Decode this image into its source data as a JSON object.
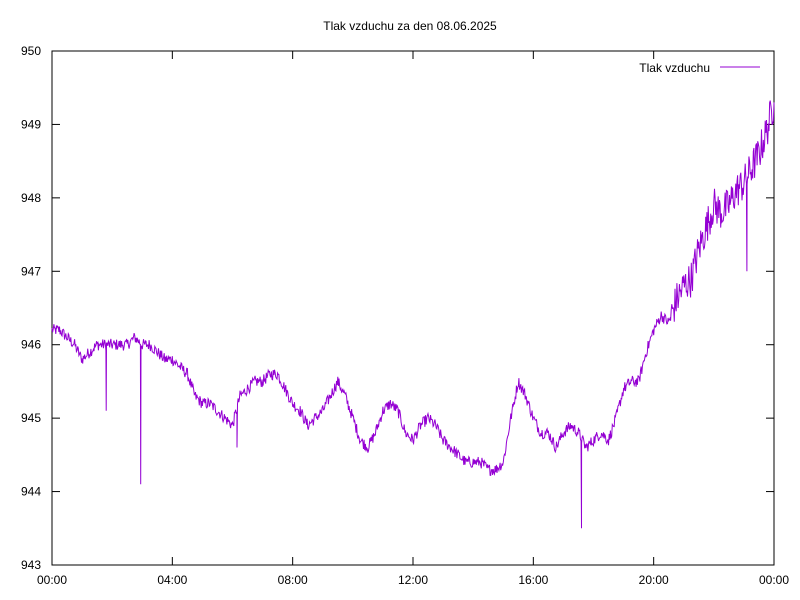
{
  "chart_data": {
    "type": "line",
    "title": "Tlak vzduchu za den 08.06.2025",
    "xlabel": "",
    "ylabel": "",
    "x_ticks": [
      "00:00",
      "04:00",
      "08:00",
      "12:00",
      "16:00",
      "20:00",
      "00:00"
    ],
    "y_ticks": [
      "943",
      "944",
      "945",
      "946",
      "947",
      "948",
      "949",
      "950"
    ],
    "xlim_hours": [
      0,
      24
    ],
    "ylim": [
      943,
      950
    ],
    "grid": false,
    "legend": {
      "placement": "top-right"
    },
    "series": [
      {
        "name": "Tlak vzduchu",
        "color": "#9400d3",
        "x_hours": [
          0.0,
          0.25,
          0.5,
          0.75,
          1.0,
          1.25,
          1.5,
          1.75,
          2.0,
          2.25,
          2.5,
          2.75,
          3.0,
          3.25,
          3.5,
          3.75,
          4.0,
          4.25,
          4.5,
          4.75,
          5.0,
          5.25,
          5.5,
          5.75,
          6.0,
          6.25,
          6.5,
          6.75,
          7.0,
          7.25,
          7.5,
          7.75,
          8.0,
          8.25,
          8.5,
          8.75,
          9.0,
          9.25,
          9.5,
          9.75,
          10.0,
          10.25,
          10.5,
          10.75,
          11.0,
          11.25,
          11.5,
          11.75,
          12.0,
          12.25,
          12.5,
          12.75,
          13.0,
          13.25,
          13.5,
          13.75,
          14.0,
          14.25,
          14.5,
          14.75,
          15.0,
          15.25,
          15.5,
          15.75,
          16.0,
          16.25,
          16.5,
          16.75,
          17.0,
          17.25,
          17.5,
          17.75,
          18.0,
          18.25,
          18.5,
          18.75,
          19.0,
          19.25,
          19.5,
          19.75,
          20.0,
          20.25,
          20.5,
          20.75,
          21.0,
          21.25,
          21.5,
          21.75,
          22.0,
          22.25,
          22.5,
          22.75,
          23.0,
          23.25,
          23.5,
          23.75,
          24.0
        ],
        "values": [
          946.2,
          946.2,
          946.1,
          946.0,
          945.8,
          945.9,
          946.0,
          946.0,
          946.0,
          946.0,
          946.0,
          946.1,
          946.0,
          946.0,
          945.9,
          945.8,
          945.8,
          945.7,
          945.6,
          945.3,
          945.2,
          945.2,
          945.1,
          945.0,
          944.9,
          945.3,
          945.4,
          945.5,
          945.5,
          945.6,
          945.6,
          945.4,
          945.2,
          945.1,
          944.9,
          945.0,
          945.1,
          945.3,
          945.5,
          945.3,
          945.0,
          944.7,
          944.6,
          944.8,
          945.1,
          945.2,
          945.1,
          944.8,
          944.7,
          944.9,
          945.0,
          944.9,
          944.7,
          944.6,
          944.5,
          944.4,
          944.4,
          944.4,
          944.3,
          944.3,
          944.4,
          945.0,
          945.5,
          945.3,
          945.0,
          944.8,
          944.8,
          944.6,
          944.8,
          944.9,
          944.8,
          944.6,
          944.7,
          944.8,
          944.7,
          945.0,
          945.4,
          945.5,
          945.5,
          945.9,
          946.2,
          946.4,
          946.3,
          946.6,
          946.8,
          946.9,
          947.3,
          947.6,
          947.9,
          947.8,
          947.9,
          948.1,
          948.2,
          948.4,
          948.6,
          948.9,
          949.3
        ],
        "spikes_hours": [
          1.8,
          2.95,
          6.15,
          17.6,
          23.1
        ],
        "spikes_values": [
          945.1,
          944.1,
          944.6,
          943.5,
          947.0
        ]
      }
    ]
  }
}
